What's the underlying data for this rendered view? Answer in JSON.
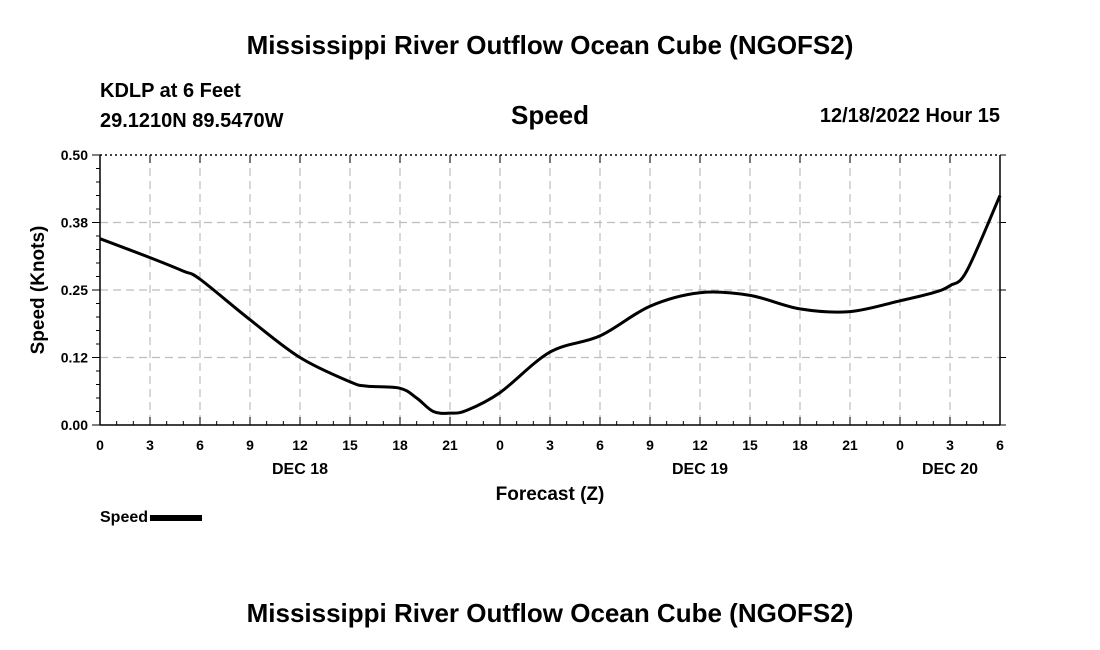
{
  "chart_data": {
    "type": "line",
    "title": "Mississippi River Outflow Ocean Cube (NGOFS2)",
    "station": "KDLP at 6 Feet",
    "location": "29.1210N  89.5470W",
    "subtitle": "Speed",
    "datetime": "12/18/2022 Hour 15",
    "xlabel": "Forecast (Z)",
    "ylabel": "Speed (Knots)",
    "ylim": [
      0,
      0.5
    ],
    "yticks": [
      "0.00",
      "0.12",
      "0.25",
      "0.38",
      "0.50"
    ],
    "yticks_values": [
      0,
      0.125,
      0.25,
      0.375,
      0.5
    ],
    "xlim": [
      0,
      54
    ],
    "xticks": [
      "0",
      "3",
      "6",
      "9",
      "12",
      "15",
      "18",
      "21",
      "0",
      "3",
      "6",
      "9",
      "12",
      "15",
      "18",
      "21",
      "0",
      "3",
      "6"
    ],
    "day_labels": [
      {
        "label": "DEC 18",
        "hour": 12
      },
      {
        "label": "DEC 19",
        "hour": 36
      },
      {
        "label": "DEC 20",
        "hour": 51
      }
    ],
    "grid": true,
    "series": [
      {
        "name": "Speed",
        "color": "#000000",
        "x": [
          0,
          3,
          5,
          6,
          9,
          12,
          15,
          16,
          18,
          19,
          20,
          21,
          22,
          24,
          27,
          30,
          33,
          36,
          39,
          42,
          45,
          48,
          50,
          51,
          52,
          54
        ],
        "values": [
          0.345,
          0.31,
          0.285,
          0.27,
          0.195,
          0.125,
          0.08,
          0.072,
          0.068,
          0.05,
          0.025,
          0.022,
          0.027,
          0.06,
          0.135,
          0.165,
          0.22,
          0.245,
          0.24,
          0.215,
          0.21,
          0.23,
          0.245,
          0.258,
          0.285,
          0.425
        ]
      }
    ]
  },
  "second_title": "Mississippi River Outflow Ocean Cube (NGOFS2)",
  "legend": {
    "label": "Speed"
  }
}
